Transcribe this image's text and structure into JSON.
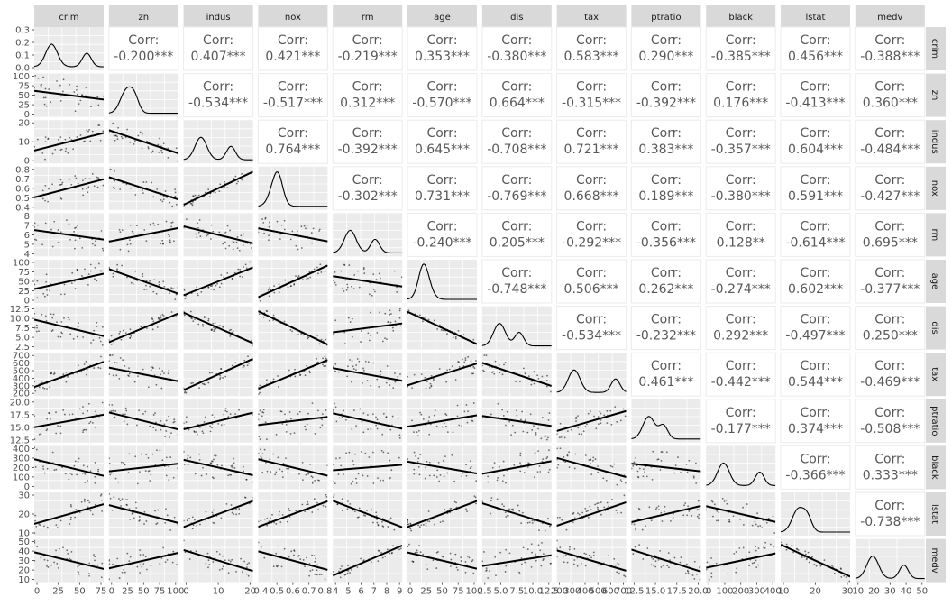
{
  "chart_data": {
    "type": "scatter-matrix",
    "variables": [
      "crim",
      "zn",
      "indus",
      "nox",
      "rm",
      "age",
      "dis",
      "tax",
      "ptratio",
      "black",
      "lstat",
      "medv"
    ],
    "corr_label": "Corr:",
    "correlations": [
      [
        "crim",
        "zn",
        "-0.200***"
      ],
      [
        "crim",
        "indus",
        "0.407***"
      ],
      [
        "crim",
        "nox",
        "0.421***"
      ],
      [
        "crim",
        "rm",
        "-0.219***"
      ],
      [
        "crim",
        "age",
        "0.353***"
      ],
      [
        "crim",
        "dis",
        "-0.380***"
      ],
      [
        "crim",
        "tax",
        "0.583***"
      ],
      [
        "crim",
        "ptratio",
        "0.290***"
      ],
      [
        "crim",
        "black",
        "-0.385***"
      ],
      [
        "crim",
        "lstat",
        "0.456***"
      ],
      [
        "crim",
        "medv",
        "-0.388***"
      ],
      [
        "zn",
        "indus",
        "-0.534***"
      ],
      [
        "zn",
        "nox",
        "-0.517***"
      ],
      [
        "zn",
        "rm",
        "0.312***"
      ],
      [
        "zn",
        "age",
        "-0.570***"
      ],
      [
        "zn",
        "dis",
        "0.664***"
      ],
      [
        "zn",
        "tax",
        "-0.315***"
      ],
      [
        "zn",
        "ptratio",
        "-0.392***"
      ],
      [
        "zn",
        "black",
        "0.176***"
      ],
      [
        "zn",
        "lstat",
        "-0.413***"
      ],
      [
        "zn",
        "medv",
        "0.360***"
      ],
      [
        "indus",
        "nox",
        "0.764***"
      ],
      [
        "indus",
        "rm",
        "-0.392***"
      ],
      [
        "indus",
        "age",
        "0.645***"
      ],
      [
        "indus",
        "dis",
        "-0.708***"
      ],
      [
        "indus",
        "tax",
        "0.721***"
      ],
      [
        "indus",
        "ptratio",
        "0.383***"
      ],
      [
        "indus",
        "black",
        "-0.357***"
      ],
      [
        "indus",
        "lstat",
        "0.604***"
      ],
      [
        "indus",
        "medv",
        "-0.484***"
      ],
      [
        "nox",
        "rm",
        "-0.302***"
      ],
      [
        "nox",
        "age",
        "0.731***"
      ],
      [
        "nox",
        "dis",
        "-0.769***"
      ],
      [
        "nox",
        "tax",
        "0.668***"
      ],
      [
        "nox",
        "ptratio",
        "0.189***"
      ],
      [
        "nox",
        "black",
        "-0.380***"
      ],
      [
        "nox",
        "lstat",
        "0.591***"
      ],
      [
        "nox",
        "medv",
        "-0.427***"
      ],
      [
        "rm",
        "age",
        "-0.240***"
      ],
      [
        "rm",
        "dis",
        "0.205***"
      ],
      [
        "rm",
        "tax",
        "-0.292***"
      ],
      [
        "rm",
        "ptratio",
        "-0.356***"
      ],
      [
        "rm",
        "black",
        "0.128**"
      ],
      [
        "rm",
        "lstat",
        "-0.614***"
      ],
      [
        "rm",
        "medv",
        "0.695***"
      ],
      [
        "age",
        "dis",
        "-0.748***"
      ],
      [
        "age",
        "tax",
        "0.506***"
      ],
      [
        "age",
        "ptratio",
        "0.262***"
      ],
      [
        "age",
        "black",
        "-0.274***"
      ],
      [
        "age",
        "lstat",
        "0.602***"
      ],
      [
        "age",
        "medv",
        "-0.377***"
      ],
      [
        "dis",
        "tax",
        "-0.534***"
      ],
      [
        "dis",
        "ptratio",
        "-0.232***"
      ],
      [
        "dis",
        "black",
        "0.292***"
      ],
      [
        "dis",
        "lstat",
        "-0.497***"
      ],
      [
        "dis",
        "medv",
        "0.250***"
      ],
      [
        "tax",
        "ptratio",
        "0.461***"
      ],
      [
        "tax",
        "black",
        "-0.442***"
      ],
      [
        "tax",
        "lstat",
        "0.544***"
      ],
      [
        "tax",
        "medv",
        "-0.469***"
      ],
      [
        "ptratio",
        "black",
        "-0.177***"
      ],
      [
        "ptratio",
        "lstat",
        "0.374***"
      ],
      [
        "ptratio",
        "medv",
        "-0.508***"
      ],
      [
        "black",
        "lstat",
        "-0.366***"
      ],
      [
        "black",
        "medv",
        "0.333***"
      ],
      [
        "lstat",
        "medv",
        "-0.738***"
      ]
    ],
    "y_axes": {
      "crim": {
        "ticks": [
          "0.3",
          "0.2",
          "0.1",
          "0.0"
        ],
        "range": [
          0.0,
          0.38
        ]
      },
      "zn": {
        "ticks": [
          "100",
          "75",
          "50",
          "25",
          "0"
        ],
        "range": [
          -5,
          100
        ]
      },
      "indus": {
        "ticks": [
          "20",
          "10",
          "0"
        ],
        "range": [
          -1,
          28
        ]
      },
      "nox": {
        "ticks": [
          "0.8",
          "0.7",
          "0.6",
          "0.5",
          "0.4"
        ],
        "range": [
          0.38,
          0.87
        ]
      },
      "rm": {
        "ticks": [
          "8",
          "7",
          "6",
          "5",
          "4"
        ],
        "range": [
          3.6,
          8.8
        ]
      },
      "age": {
        "ticks": [
          "100",
          "75",
          "50",
          "25",
          "0"
        ],
        "range": [
          0,
          100
        ]
      },
      "dis": {
        "ticks": [
          "12.5",
          "10.0",
          "7.5",
          "5.0",
          "2.5"
        ],
        "range": [
          1,
          12.7
        ]
      },
      "tax": {
        "ticks": [
          "700",
          "600",
          "500",
          "400",
          "300",
          "200"
        ],
        "range": [
          180,
          711
        ]
      },
      "ptratio": {
        "ticks": [
          "20.0",
          "17.5",
          "15.0",
          "12.5"
        ],
        "range": [
          12.6,
          22
        ]
      },
      "black": {
        "ticks": [
          "400",
          "300",
          "200",
          "100",
          "0"
        ],
        "range": [
          0,
          400
        ]
      },
      "lstat": {
        "ticks": [
          "30",
          "20",
          "10"
        ],
        "range": [
          1.7,
          38
        ]
      },
      "medv": {
        "ticks": [
          "50",
          "40",
          "30",
          "20",
          "10"
        ],
        "range": [
          5,
          50
        ]
      }
    },
    "x_axes": {
      "crim": {
        "ticks": [
          "0",
          "25",
          "50",
          "75"
        ],
        "range": [
          0,
          89
        ]
      },
      "zn": {
        "ticks": [
          "0",
          "25",
          "50",
          "75",
          "100"
        ],
        "range": [
          0,
          100
        ]
      },
      "indus": {
        "ticks": [
          "0",
          "10",
          "20"
        ],
        "range": [
          0,
          28
        ]
      },
      "nox": {
        "ticks": [
          "0.4",
          "0.5",
          "0.6",
          "0.7",
          "0.8"
        ],
        "range": [
          0.38,
          0.87
        ]
      },
      "rm": {
        "ticks": [
          "4",
          "5",
          "6",
          "7",
          "8",
          "9"
        ],
        "range": [
          3.6,
          8.8
        ]
      },
      "age": {
        "ticks": [
          "0",
          "25",
          "50",
          "75",
          "100"
        ],
        "range": [
          0,
          100
        ]
      },
      "dis": {
        "ticks": [
          "2.5",
          "5.0",
          "7.5",
          "10.0",
          "12.5"
        ],
        "range": [
          1,
          12.7
        ]
      },
      "tax": {
        "ticks": [
          "200",
          "300",
          "400",
          "500",
          "600",
          "700"
        ],
        "range": [
          180,
          711
        ]
      },
      "ptratio": {
        "ticks": [
          "12.5",
          "15.0",
          "17.5",
          "20.0"
        ],
        "range": [
          12.6,
          22
        ]
      },
      "black": {
        "ticks": [
          "0",
          "100",
          "200",
          "300",
          "400"
        ],
        "range": [
          0,
          400
        ]
      },
      "lstat": {
        "ticks": [
          "10",
          "20",
          "30"
        ],
        "range": [
          1.7,
          38
        ]
      },
      "medv": {
        "ticks": [
          "10",
          "20",
          "30",
          "40",
          "50"
        ],
        "range": [
          5,
          50
        ]
      }
    },
    "grid": true,
    "regression_lines": true,
    "diagonal": "density"
  },
  "colors": {
    "panel_bg": "#ebebeb",
    "strip_bg": "#d9d9d9",
    "grid_major": "#ffffff",
    "point": "#000000",
    "line": "#000000",
    "corr_text": "#595959",
    "tick_text": "#4d4d4d"
  }
}
